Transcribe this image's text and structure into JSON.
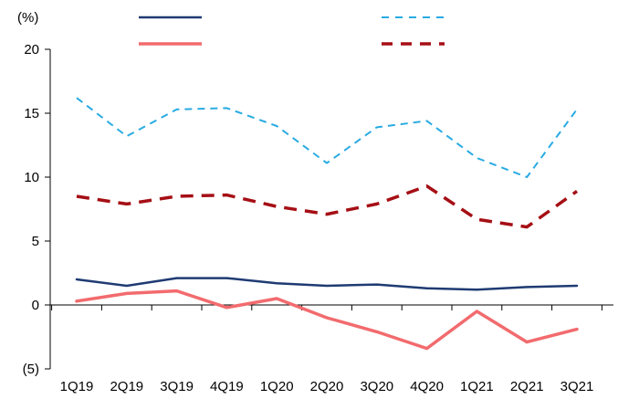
{
  "chart_data": {
    "type": "line",
    "ylabel": "(%)",
    "ylim": [
      -5,
      20
    ],
    "yticks": [
      {
        "value": 20,
        "label": "20"
      },
      {
        "value": 15,
        "label": "15"
      },
      {
        "value": 10,
        "label": "10"
      },
      {
        "value": 5,
        "label": "5"
      },
      {
        "value": 0,
        "label": "0"
      },
      {
        "value": -5,
        "label": "(5)"
      }
    ],
    "categories": [
      "1Q19",
      "2Q19",
      "3Q19",
      "4Q19",
      "1Q20",
      "2Q20",
      "3Q20",
      "4Q20",
      "1Q21",
      "2Q21",
      "3Q21"
    ],
    "grid": false,
    "legend_position": "top",
    "series": [
      {
        "key": "navy-solid",
        "color": "#1f3b73",
        "style": "solid",
        "width": 2.5,
        "values": [
          2.0,
          1.5,
          2.1,
          2.1,
          1.7,
          1.5,
          1.6,
          1.3,
          1.2,
          1.4,
          1.5
        ]
      },
      {
        "key": "blue-dashed",
        "color": "#29abe2",
        "style": "dashed",
        "width": 2,
        "values": [
          16.2,
          13.2,
          15.3,
          15.4,
          14.0,
          11.1,
          13.9,
          14.4,
          11.5,
          10.0,
          15.3
        ]
      },
      {
        "key": "red-solid",
        "color": "#f26b6e",
        "style": "solid",
        "width": 3.5,
        "values": [
          0.3,
          0.9,
          1.1,
          -0.2,
          0.5,
          -1.0,
          -2.1,
          -3.4,
          -0.5,
          -2.9,
          -1.9
        ]
      },
      {
        "key": "darkred-dashed",
        "color": "#a50f15",
        "style": "dashed",
        "width": 3.5,
        "values": [
          8.5,
          7.9,
          8.5,
          8.6,
          7.7,
          7.1,
          7.9,
          9.3,
          6.7,
          6.1,
          8.9
        ]
      }
    ]
  }
}
